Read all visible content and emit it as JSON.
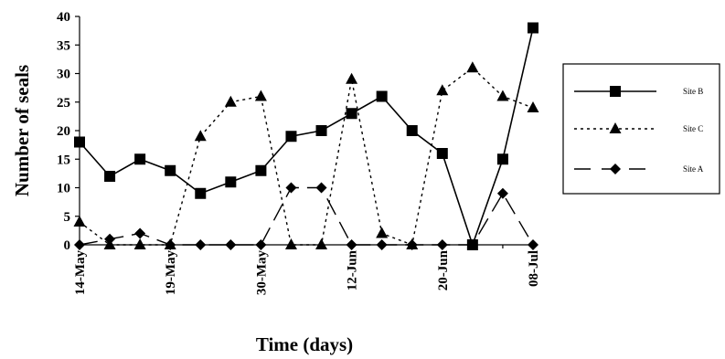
{
  "chart_data": {
    "type": "line",
    "xlabel": "Time (days)",
    "ylabel": "Number of seals",
    "ylim": [
      0,
      40
    ],
    "yticks": [
      0,
      5,
      10,
      15,
      20,
      25,
      30,
      35,
      40
    ],
    "x_tick_labels": [
      {
        "label": "14-May",
        "index": 0
      },
      {
        "label": "19-May",
        "index": 3
      },
      {
        "label": "30-May",
        "index": 6
      },
      {
        "label": "12-Jun",
        "index": 9
      },
      {
        "label": "20-Jun",
        "index": 12
      },
      {
        "label": "08-Jul",
        "index": 15
      }
    ],
    "n_points": 16,
    "legend_position": "right",
    "series": [
      {
        "name": "Site B",
        "line": "solid",
        "marker": "square",
        "values": [
          18,
          12,
          15,
          13,
          9,
          11,
          13,
          19,
          20,
          23,
          26,
          20,
          16,
          0,
          15,
          38
        ]
      },
      {
        "name": "Site C",
        "line": "dotted",
        "marker": "triangle",
        "values": [
          4,
          0,
          0,
          0,
          19,
          25,
          26,
          0,
          0,
          29,
          2,
          0,
          27,
          31,
          26,
          24
        ]
      },
      {
        "name": "Site A",
        "line": "longdash",
        "marker": "diamond",
        "values": [
          0,
          1,
          2,
          0,
          0,
          0,
          0,
          10,
          10,
          0,
          0,
          0,
          0,
          0,
          9,
          0
        ]
      }
    ]
  }
}
